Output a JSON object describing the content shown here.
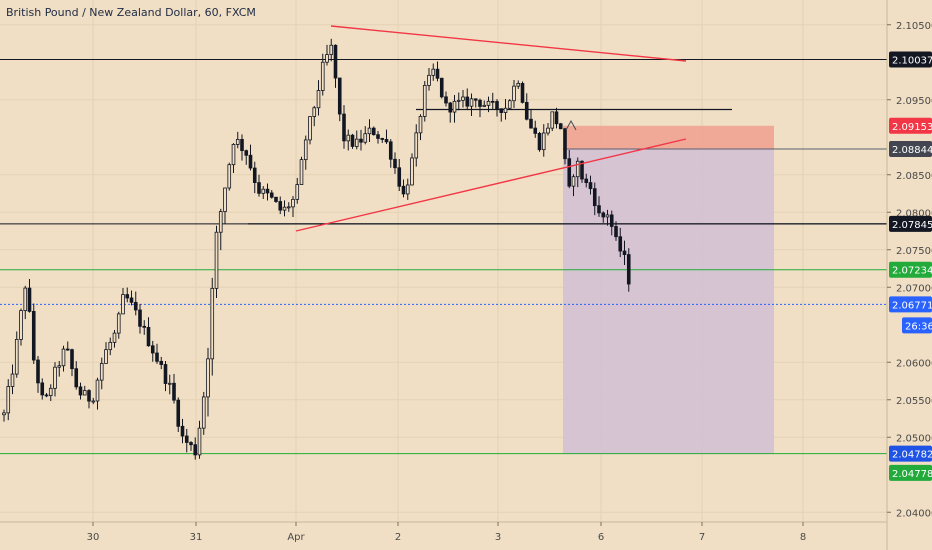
{
  "chart_data": {
    "type": "candlestick",
    "title": "British Pound / New Zealand Dollar, 60, FXCM",
    "y_axis": {
      "min": 2.0395,
      "max": 2.1075,
      "ticks": [
        "2.10500",
        "2.09500",
        "2.08500",
        "2.08000",
        "2.07500",
        "2.07000",
        "2.06000",
        "2.05500",
        "2.05000",
        "2.04000"
      ]
    },
    "x_axis": {
      "labels": [
        "30",
        "31",
        "Apr",
        "2",
        "3",
        "6",
        "7",
        "8"
      ]
    },
    "price_lines": [
      {
        "price": 2.10037,
        "label": "2.10037",
        "color": "#131722",
        "style": "solid"
      },
      {
        "price": 2.07845,
        "label": "2.07845",
        "color": "#131722",
        "style": "solid"
      },
      {
        "price": 2.07234,
        "label": "2.07234",
        "color": "#22ab3a",
        "style": "solid"
      },
      {
        "price": 2.04782,
        "label": "2.04782",
        "color": "#22ab3a",
        "style": "solid"
      },
      {
        "price": 2.06771,
        "label": "2.06771",
        "color": "#2962ff",
        "style": "dotted"
      }
    ],
    "axis_labels": [
      {
        "price": 2.10037,
        "label": "2.10037",
        "bg": "#131722",
        "fg": "#ffffff"
      },
      {
        "price": 2.09153,
        "label": "2.09153",
        "bg": "#f23645",
        "fg": "#ffffff"
      },
      {
        "price": 2.08844,
        "label": "2.08844",
        "bg": "#434651",
        "fg": "#ffffff"
      },
      {
        "price": 2.07845,
        "label": "2.07845",
        "bg": "#131722",
        "fg": "#ffffff"
      },
      {
        "price": 2.07234,
        "label": "2.07234",
        "bg": "#22ab3a",
        "fg": "#ffffff"
      },
      {
        "price": 2.06771,
        "label": "2.06771",
        "bg": "#2962ff",
        "fg": "#ffffff"
      },
      {
        "price": 2.04782,
        "label": "2.04782",
        "bg": "#1e53e5",
        "fg": "#ffffff"
      },
      {
        "price": 2.04778,
        "label": "2.04778",
        "bg": "#22ab3a",
        "fg": "#ffffff"
      }
    ],
    "countdown": "26:36",
    "short_position": {
      "entry": 2.08844,
      "stop": 2.09153,
      "target": 2.04782,
      "stop_color": "#f0a08f",
      "target_color": "#d2c0d6"
    },
    "colors": {
      "background": "#f0dfc4",
      "candle": "#131722",
      "trendline": "#f23645",
      "grid": "#e4d2b5"
    }
  }
}
